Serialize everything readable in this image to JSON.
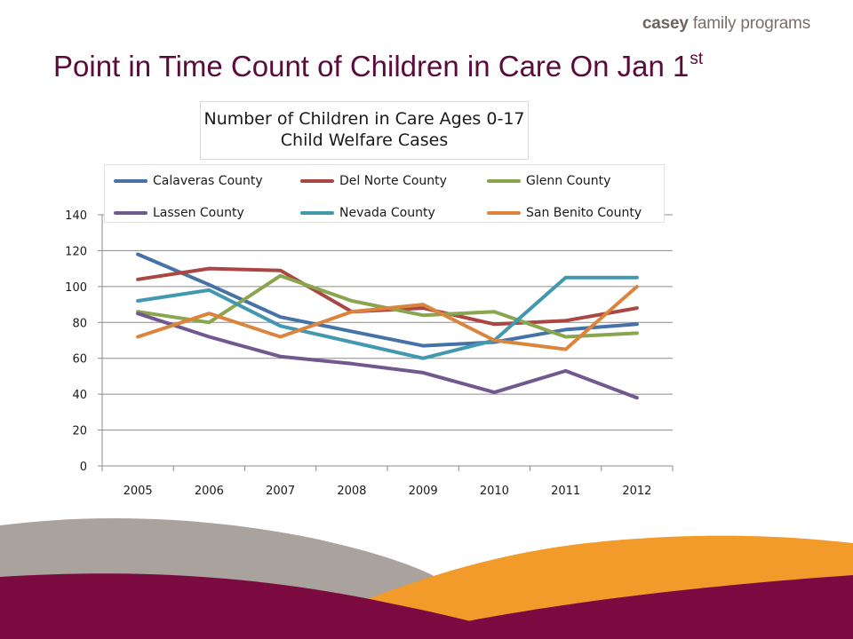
{
  "header": {
    "brand_bold": "casey",
    "brand_rest": " family programs",
    "title_main": "Point in Time Count of Children in Care On Jan 1",
    "title_sup": "st"
  },
  "colors": {
    "title": "#5b0a3c",
    "footer_maroon": "#7a0a3f",
    "footer_orange": "#f29a2a",
    "footer_gray": "#a9a29d"
  },
  "chart_data": {
    "type": "line",
    "title_line1": "Number of Children in Care Ages 0-17",
    "title_line2": "Child Welfare Cases",
    "x": [
      "2005",
      "2006",
      "2007",
      "2008",
      "2009",
      "2010",
      "2011",
      "2012"
    ],
    "ylim": [
      0,
      140
    ],
    "yticks": [
      "0",
      "20",
      "40",
      "60",
      "80",
      "100",
      "120",
      "140"
    ],
    "grid": true,
    "legend_position": "top",
    "series": [
      {
        "name": "Calaveras County",
        "color": "#4572a7",
        "values": [
          118,
          101,
          83,
          75,
          67,
          69,
          76,
          79
        ]
      },
      {
        "name": "Del Norte County",
        "color": "#aa4643",
        "values": [
          104,
          110,
          109,
          86,
          88,
          79,
          81,
          88
        ]
      },
      {
        "name": "Glenn County",
        "color": "#89a54e",
        "values": [
          86,
          80,
          106,
          92,
          84,
          86,
          72,
          74
        ]
      },
      {
        "name": "Lassen County",
        "color": "#71588f",
        "values": [
          85,
          72,
          61,
          57,
          52,
          41,
          53,
          38
        ]
      },
      {
        "name": "Nevada County",
        "color": "#4198af",
        "values": [
          92,
          98,
          78,
          69,
          60,
          70,
          105,
          105
        ]
      },
      {
        "name": "San Benito County",
        "color": "#db843d",
        "values": [
          72,
          85,
          72,
          86,
          90,
          70,
          65,
          100
        ]
      }
    ]
  }
}
